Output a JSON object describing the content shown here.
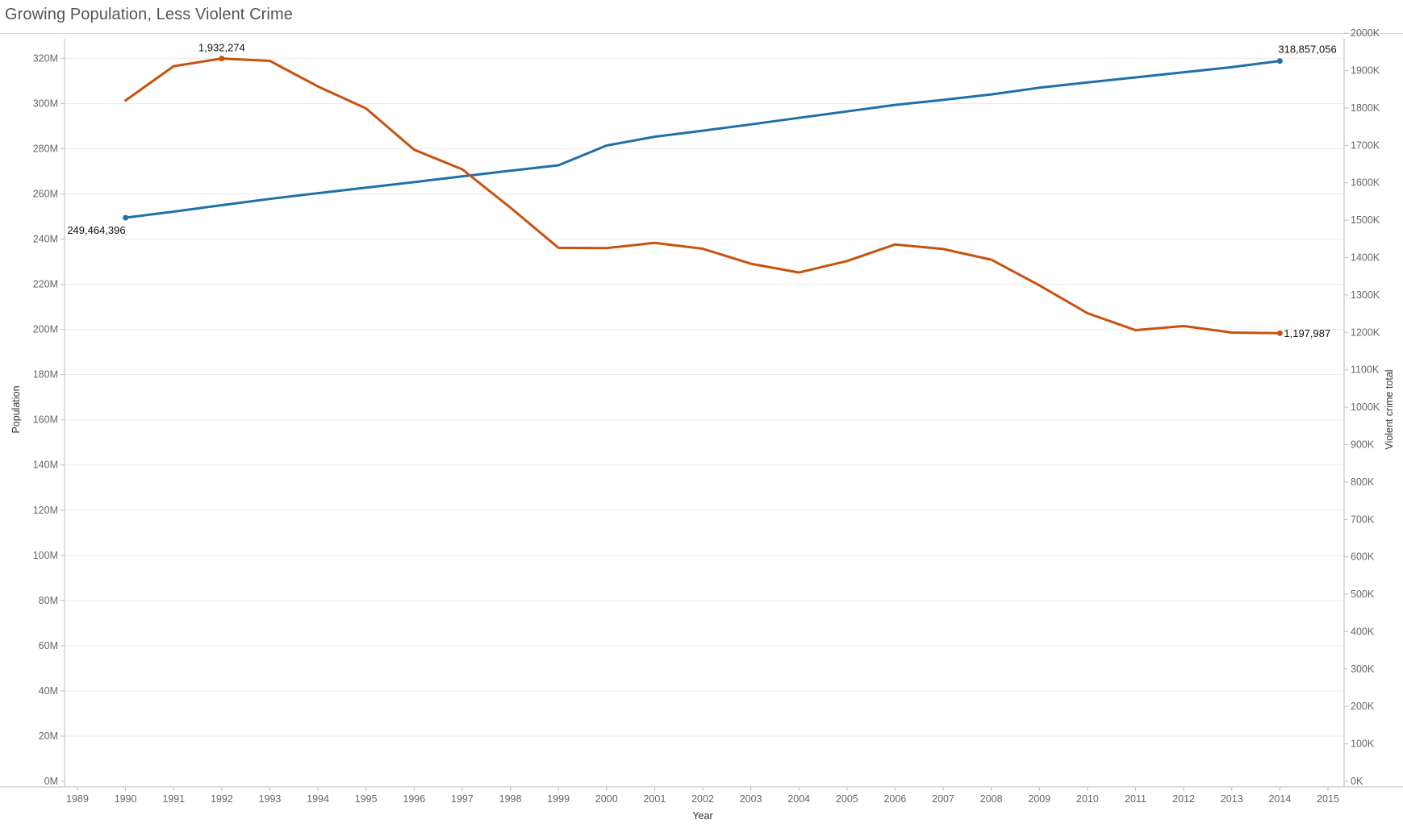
{
  "title": "Growing Population, Less Violent Crime",
  "colors": {
    "population": "#1f6fa8",
    "violent_crime": "#c8520f",
    "grid": "#ececec",
    "axis": "#bdbdbd",
    "tick_text": "#666666"
  },
  "chart_data": {
    "type": "line",
    "title": "Growing Population, Less Violent Crime",
    "xlabel": "Year",
    "ylabel": "Population",
    "y2label": "Violent crime total",
    "x": [
      1990,
      1991,
      1992,
      1993,
      1994,
      1995,
      1996,
      1997,
      1998,
      1999,
      2000,
      2001,
      2002,
      2003,
      2004,
      2005,
      2006,
      2007,
      2008,
      2009,
      2010,
      2011,
      2012,
      2013,
      2014
    ],
    "x_ticks": [
      "1989",
      "1990",
      "1991",
      "1992",
      "1993",
      "1994",
      "1995",
      "1996",
      "1997",
      "1998",
      "1999",
      "2000",
      "2001",
      "2002",
      "2003",
      "2004",
      "2005",
      "2006",
      "2007",
      "2008",
      "2009",
      "2010",
      "2011",
      "2012",
      "2013",
      "2014",
      "2015"
    ],
    "xlim": [
      1989,
      2015
    ],
    "ylim": [
      0,
      328000000
    ],
    "y2lim": [
      0,
      1981000
    ],
    "y_ticks": [
      {
        "value": 0,
        "label": "0M"
      },
      {
        "value": 20000000,
        "label": "20M"
      },
      {
        "value": 40000000,
        "label": "40M"
      },
      {
        "value": 60000000,
        "label": "60M"
      },
      {
        "value": 80000000,
        "label": "80M"
      },
      {
        "value": 100000000,
        "label": "100M"
      },
      {
        "value": 120000000,
        "label": "120M"
      },
      {
        "value": 140000000,
        "label": "140M"
      },
      {
        "value": 160000000,
        "label": "160M"
      },
      {
        "value": 180000000,
        "label": "180M"
      },
      {
        "value": 200000000,
        "label": "200M"
      },
      {
        "value": 220000000,
        "label": "220M"
      },
      {
        "value": 240000000,
        "label": "240M"
      },
      {
        "value": 260000000,
        "label": "260M"
      },
      {
        "value": 280000000,
        "label": "280M"
      },
      {
        "value": 300000000,
        "label": "300M"
      },
      {
        "value": 320000000,
        "label": "320M"
      }
    ],
    "y2_ticks": [
      {
        "value": 0,
        "label": "0K"
      },
      {
        "value": 100000,
        "label": "100K"
      },
      {
        "value": 200000,
        "label": "200K"
      },
      {
        "value": 300000,
        "label": "300K"
      },
      {
        "value": 400000,
        "label": "400K"
      },
      {
        "value": 500000,
        "label": "500K"
      },
      {
        "value": 600000,
        "label": "600K"
      },
      {
        "value": 700000,
        "label": "700K"
      },
      {
        "value": 800000,
        "label": "800K"
      },
      {
        "value": 900000,
        "label": "900K"
      },
      {
        "value": 1000000,
        "label": "1000K"
      },
      {
        "value": 1100000,
        "label": "1100K"
      },
      {
        "value": 1200000,
        "label": "1200K"
      },
      {
        "value": 1300000,
        "label": "1300K"
      },
      {
        "value": 1400000,
        "label": "1400K"
      },
      {
        "value": 1500000,
        "label": "1500K"
      },
      {
        "value": 1600000,
        "label": "1600K"
      },
      {
        "value": 1700000,
        "label": "1700K"
      },
      {
        "value": 1800000,
        "label": "1800K"
      },
      {
        "value": 1900000,
        "label": "1900K"
      },
      {
        "value": 2000000,
        "label": "2000K"
      }
    ],
    "grid": true,
    "series": [
      {
        "name": "Population",
        "axis": "left",
        "values": [
          249464396,
          252153092,
          255029699,
          257782608,
          260327021,
          262803276,
          265228572,
          267783607,
          270248003,
          272690813,
          281421906,
          285317559,
          287973924,
          290788976,
          293656842,
          296507061,
          299398484,
          301621157,
          304059724,
          307006550,
          309330219,
          311587816,
          313873685,
          316128839,
          318857056
        ],
        "labels": [
          {
            "x": 1990,
            "text": "249,464,396"
          },
          {
            "x": 2014,
            "text": "318,857,056"
          }
        ]
      },
      {
        "name": "Violent crime total",
        "axis": "right",
        "values": [
          1820130,
          1911767,
          1932274,
          1926017,
          1857670,
          1798792,
          1688540,
          1636096,
          1533887,
          1426044,
          1425486,
          1439480,
          1423677,
          1383676,
          1360088,
          1390745,
          1435123,
          1422970,
          1394461,
          1325896,
          1251248,
          1206005,
          1217067,
          1199684,
          1197987
        ],
        "labels": [
          {
            "x": 1992,
            "text": "1,932,274"
          },
          {
            "x": 2014,
            "text": "1,197,987"
          }
        ]
      }
    ]
  }
}
